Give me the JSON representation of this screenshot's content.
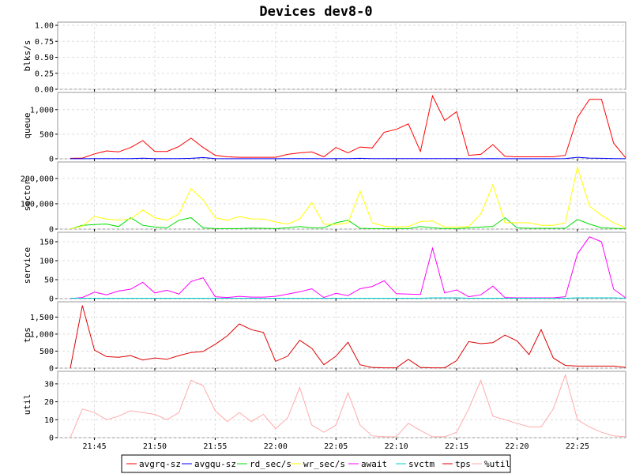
{
  "chart_data": {
    "type": "line",
    "title": "Devices dev8-0",
    "x_ticks": [
      "21:45",
      "21:50",
      "21:55",
      "22:00",
      "22:05",
      "22:10",
      "22:15",
      "22:20",
      "22:25"
    ],
    "x_tick_index": [
      2,
      7,
      12,
      17,
      22,
      27,
      32,
      37,
      42
    ],
    "n_points": 47,
    "legend_position": "bottom",
    "grid": true,
    "legend": [
      {
        "name": "avgrq-sz",
        "color": "#ff0000"
      },
      {
        "name": "avgqu-sz",
        "color": "#0000ff"
      },
      {
        "name": "rd_sec/s",
        "color": "#00dd00"
      },
      {
        "name": "wr_sec/s",
        "color": "#ffff00"
      },
      {
        "name": "await",
        "color": "#ff00ff"
      },
      {
        "name": "svctm",
        "color": "#00cccc"
      },
      {
        "name": "tps",
        "color": "#dd0000"
      },
      {
        "name": "%util",
        "color": "#ffaaaa"
      }
    ],
    "panels": [
      {
        "ylabel": "blks/s",
        "ylim": [
          0,
          1.05
        ],
        "yticks": [
          0,
          0.25,
          0.5,
          0.75,
          1.0
        ],
        "ytick_labels": [
          "0.00",
          "0.25",
          "0.50",
          "0.75",
          "1.00"
        ],
        "series": []
      },
      {
        "ylabel": "queue",
        "ylim": [
          0,
          1350
        ],
        "yticks": [
          0,
          500,
          1000
        ],
        "ytick_labels": [
          "0",
          "500",
          "1,000"
        ],
        "series": [
          {
            "name": "avgrq-sz",
            "color": "#ff0000",
            "values": [
              10,
              15,
              100,
              160,
              140,
              230,
              370,
              150,
              150,
              250,
              420,
              230,
              70,
              40,
              30,
              30,
              30,
              30,
              90,
              120,
              140,
              40,
              230,
              120,
              240,
              220,
              540,
              600,
              710,
              150,
              1280,
              780,
              960,
              70,
              90,
              290,
              50,
              40,
              40,
              40,
              40,
              70,
              840,
              1210,
              1210,
              320,
              20
            ]
          },
          {
            "name": "avgqu-sz",
            "color": "#0000ff",
            "values": [
              2,
              2,
              3,
              3,
              3,
              5,
              12,
              5,
              5,
              5,
              10,
              25,
              5,
              2,
              1,
              1,
              1,
              1,
              3,
              3,
              5,
              2,
              5,
              3,
              10,
              5,
              5,
              5,
              5,
              3,
              5,
              3,
              5,
              2,
              2,
              5,
              2,
              2,
              2,
              2,
              2,
              3,
              30,
              15,
              10,
              5,
              2
            ]
          }
        ]
      },
      {
        "ylabel": "sector",
        "ylim": [
          0,
          265000
        ],
        "yticks": [
          0,
          100000,
          200000
        ],
        "ytick_labels": [
          "0",
          "100,000",
          "200,000"
        ],
        "series": [
          {
            "name": "rd_sec/s",
            "color": "#00dd00",
            "values": [
              1000,
              15000,
              18000,
              20000,
              10000,
              45000,
              15000,
              8000,
              5000,
              35000,
              45000,
              5000,
              2000,
              2000,
              2000,
              4000,
              3000,
              2000,
              5000,
              10000,
              5000,
              5000,
              25000,
              35000,
              3000,
              2000,
              2000,
              2000,
              2000,
              10000,
              5000,
              2000,
              2000,
              5000,
              8000,
              10000,
              45000,
              5000,
              3000,
              3000,
              3000,
              3000,
              38000,
              20000,
              5000,
              3000,
              2000
            ]
          },
          {
            "name": "wr_sec/s",
            "color": "#ffff00",
            "values": [
              1000,
              12000,
              50000,
              40000,
              35000,
              40000,
              75000,
              45000,
              35000,
              60000,
              160000,
              115000,
              45000,
              35000,
              50000,
              40000,
              40000,
              28000,
              20000,
              40000,
              105000,
              20000,
              18000,
              25000,
              150000,
              25000,
              12000,
              8000,
              10000,
              30000,
              32000,
              8000,
              8000,
              10000,
              60000,
              175000,
              25000,
              25000,
              25000,
              15000,
              15000,
              25000,
              245000,
              90000,
              55000,
              25000,
              5000
            ]
          }
        ]
      },
      {
        "ylabel": "service",
        "ylim": [
          0,
          175
        ],
        "yticks": [
          0,
          50,
          100,
          150
        ],
        "ytick_labels": [
          "0",
          "50",
          "100",
          "150"
        ],
        "series": [
          {
            "name": "await",
            "color": "#ff00ff",
            "values": [
              0,
              3,
              17,
              10,
              20,
              25,
              43,
              15,
              22,
              12,
              45,
              55,
              5,
              3,
              6,
              4,
              4,
              6,
              12,
              18,
              26,
              3,
              14,
              8,
              26,
              32,
              47,
              13,
              12,
              11,
              133,
              15,
              23,
              5,
              10,
              33,
              3,
              2,
              2,
              2,
              2,
              5,
              118,
              163,
              150,
              25,
              2
            ]
          },
          {
            "name": "svctm",
            "color": "#00cccc",
            "values": [
              1,
              1,
              1,
              1,
              1,
              1,
              1,
              1,
              1,
              1,
              1,
              1,
              1,
              1,
              1,
              1,
              1,
              1,
              1,
              1,
              1,
              1,
              1,
              1,
              1,
              1,
              1,
              1,
              1,
              1,
              2,
              2,
              2,
              1,
              1,
              1,
              1,
              1,
              1,
              1,
              1,
              1,
              2,
              2,
              2,
              2,
              1
            ]
          }
        ]
      },
      {
        "ylabel": "tps",
        "ylim": [
          0,
          1950
        ],
        "yticks": [
          0,
          500,
          1000,
          1500
        ],
        "ytick_labels": [
          "0",
          "500",
          "1,000",
          "1,500"
        ],
        "series": [
          {
            "name": "tps",
            "color": "#dd0000",
            "values": [
              0,
              1840,
              530,
              340,
              320,
              370,
              240,
              300,
              260,
              370,
              460,
              490,
              700,
              950,
              1300,
              1130,
              1050,
              200,
              350,
              820,
              580,
              100,
              350,
              760,
              100,
              20,
              10,
              10,
              260,
              20,
              10,
              10,
              220,
              780,
              720,
              750,
              970,
              800,
              400,
              1130,
              300,
              80,
              60,
              60,
              60,
              60,
              20
            ]
          }
        ]
      },
      {
        "ylabel": "util",
        "ylim": [
          0,
          37
        ],
        "yticks": [
          0,
          10,
          20,
          30
        ],
        "ytick_labels": [
          "0",
          "10",
          "20",
          "30"
        ],
        "series": [
          {
            "name": "%util",
            "color": "#ffaaaa",
            "values": [
              0,
              16,
              14,
              10,
              12,
              15,
              14,
              13,
              10,
              14,
              32,
              29,
              15,
              9,
              14,
              9,
              13,
              5,
              11,
              28,
              7,
              3,
              7,
              25,
              7,
              1,
              0.5,
              0.5,
              8,
              4,
              0.5,
              0.5,
              3,
              16,
              32,
              12,
              10,
              8,
              6,
              6,
              16,
              35,
              10,
              6,
              3,
              1,
              0.5
            ]
          }
        ]
      }
    ]
  }
}
